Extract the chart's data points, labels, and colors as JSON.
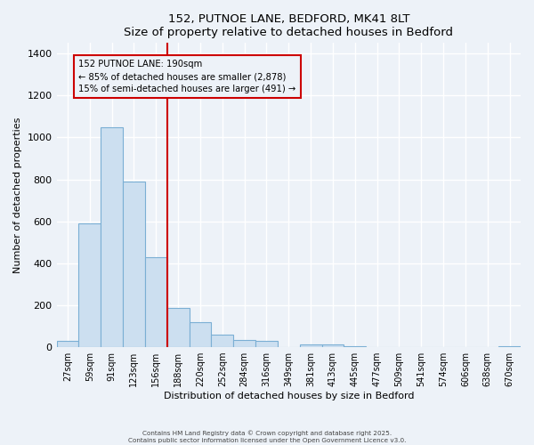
{
  "title": "152, PUTNOE LANE, BEDFORD, MK41 8LT",
  "subtitle": "Size of property relative to detached houses in Bedford",
  "xlabel": "Distribution of detached houses by size in Bedford",
  "ylabel": "Number of detached properties",
  "bar_labels": [
    "27sqm",
    "59sqm",
    "91sqm",
    "123sqm",
    "156sqm",
    "188sqm",
    "220sqm",
    "252sqm",
    "284sqm",
    "316sqm",
    "349sqm",
    "381sqm",
    "413sqm",
    "445sqm",
    "477sqm",
    "509sqm",
    "541sqm",
    "574sqm",
    "606sqm",
    "638sqm",
    "670sqm"
  ],
  "bar_values": [
    30,
    590,
    1050,
    790,
    430,
    185,
    120,
    60,
    35,
    30,
    0,
    15,
    12,
    5,
    0,
    0,
    0,
    0,
    0,
    0,
    3
  ],
  "bar_color": "#ccdff0",
  "bar_edge_color": "#7bafd4",
  "vline_index": 5,
  "vline_color": "#cc0000",
  "annotation_title": "152 PUTNOE LANE: 190sqm",
  "annotation_line1": "← 85% of detached houses are smaller (2,878)",
  "annotation_line2": "15% of semi-detached houses are larger (491) →",
  "ylim": [
    0,
    1450
  ],
  "yticks": [
    0,
    200,
    400,
    600,
    800,
    1000,
    1200,
    1400
  ],
  "footer_line1": "Contains HM Land Registry data © Crown copyright and database right 2025.",
  "footer_line2": "Contains public sector information licensed under the Open Government Licence v3.0.",
  "bg_color": "#edf2f8",
  "grid_color": "#ffffff",
  "title_fontsize": 9.5,
  "label_fontsize": 8,
  "tick_fontsize": 7
}
